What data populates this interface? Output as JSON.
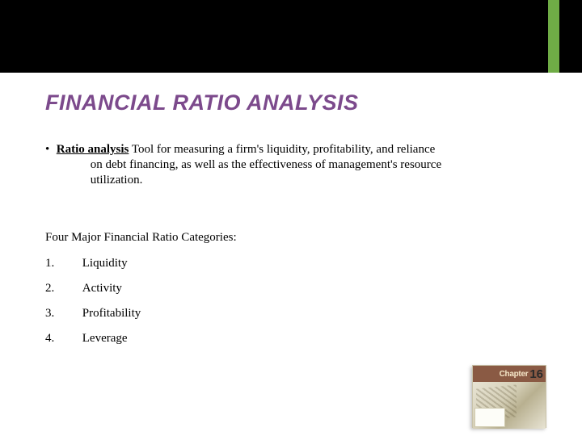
{
  "colors": {
    "background": "#000000",
    "slide_bg": "#ffffff",
    "accent": "#6fac46",
    "title": "#7c4a8c",
    "text": "#000000"
  },
  "title": "FINANCIAL RATIO ANALYSIS",
  "bullet": {
    "marker": "•",
    "term": "Ratio analysis",
    "definition_line1": " Tool for measuring a firm's liquidity, profitability, and reliance",
    "definition_line2": "on debt financing, as well as the effectiveness of management's resource",
    "definition_line3": "utilization."
  },
  "subheading": "Four Major Financial Ratio Categories:",
  "categories": [
    {
      "num": "1.",
      "label": "Liquidity"
    },
    {
      "num": "2.",
      "label": "Activity"
    },
    {
      "num": "3.",
      "label": "Profitability"
    },
    {
      "num": "4.",
      "label": "Leverage"
    }
  ],
  "chapter": {
    "word": "Chapter",
    "number": "16"
  }
}
